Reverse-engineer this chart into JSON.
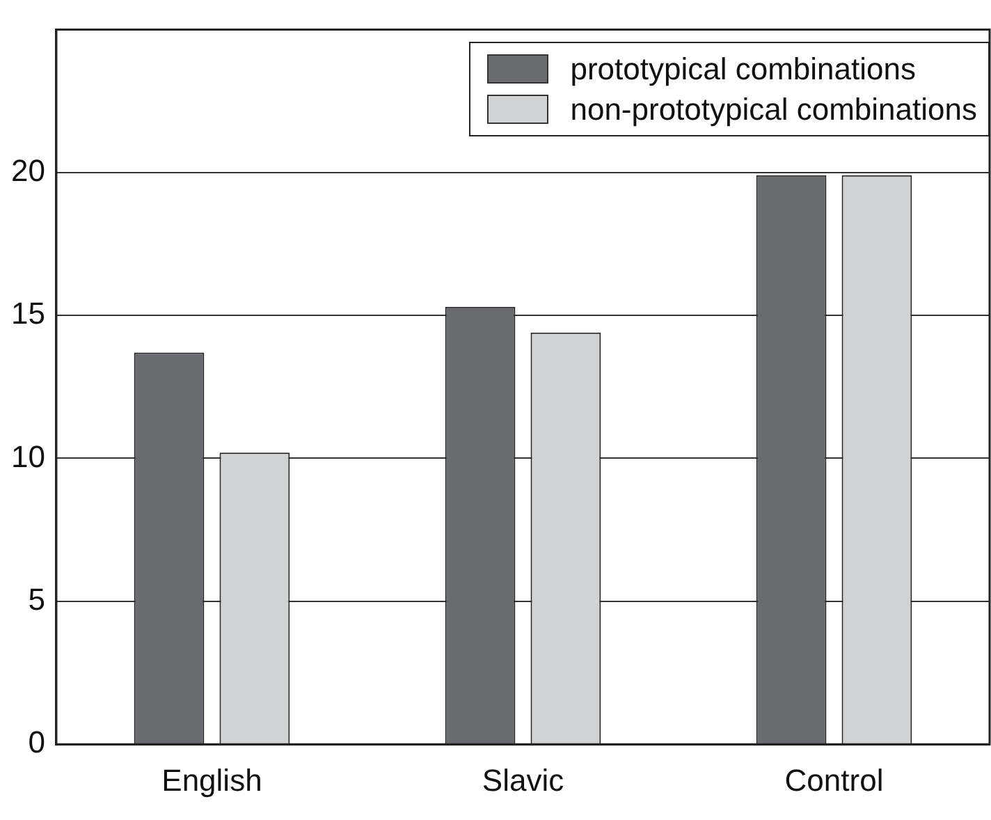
{
  "chart_data": {
    "type": "bar",
    "categories": [
      "English",
      "Slavic",
      "Control"
    ],
    "series": [
      {
        "name": "prototypical combinations",
        "color": "#6a6b6f",
        "values": [
          13.7,
          15.3,
          19.9
        ]
      },
      {
        "name": "non-prototypical combinations",
        "color": "#d1d2d4",
        "values": [
          10.2,
          14.4,
          19.9
        ]
      }
    ],
    "ylim": [
      0,
      25
    ],
    "yticks": [
      0,
      5,
      10,
      15,
      20
    ],
    "grid": "y",
    "legend": "top right"
  }
}
